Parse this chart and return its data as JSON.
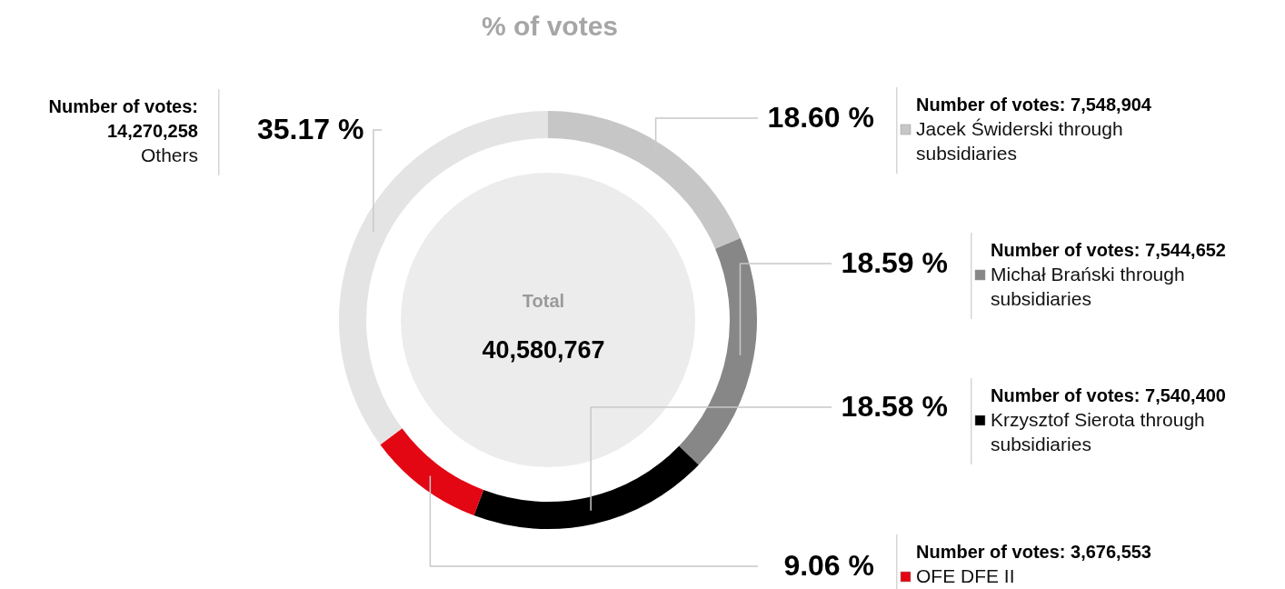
{
  "chart_data": {
    "type": "donut",
    "title": "% of votes",
    "categories": [
      "Jacek Świderski through subsidiaries",
      "Michał Brański through subsidiaries",
      "Krzysztof Sierota through subsidiaries",
      "OFE DFE II",
      "Others"
    ],
    "values": [
      18.6,
      18.59,
      18.58,
      9.06,
      35.17
    ],
    "legend": "right",
    "colors": [
      "#c6c6c6",
      "#878787",
      "#000000",
      "#e30613",
      "#e4e4e4"
    ],
    "value_labels": [
      "18.60 %",
      "18.59 %",
      "18.58 %",
      "9.06 %",
      "35.17 %"
    ],
    "annotations": [
      "Total",
      "40,580,767",
      "Number of votes: 7,548,904",
      "Number of votes: 7,544,652",
      "Number of votes: 7,540,400",
      "Number of votes: 3,676,553",
      "Number of votes: 14,270,258"
    ]
  }
}
